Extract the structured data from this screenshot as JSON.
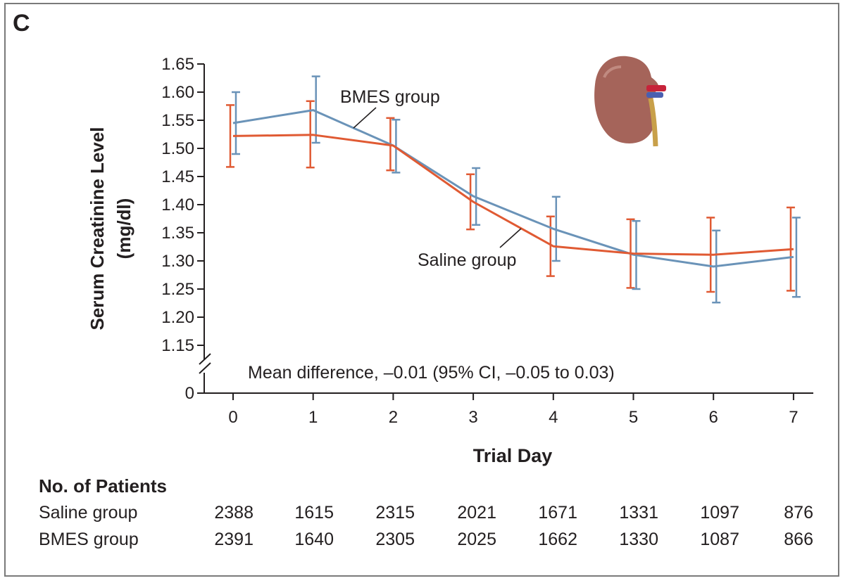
{
  "panel_label": "C",
  "colors": {
    "saline": "#e05a33",
    "bmes": "#6a93b8",
    "axis": "#231f20",
    "kidney": "#a5645a"
  },
  "icons": [
    "kidney-icon",
    "axis-break-icon"
  ],
  "chart_data": {
    "type": "line",
    "x": [
      0,
      1,
      2,
      3,
      4,
      5,
      6,
      7
    ],
    "xlabel": "Trial Day",
    "ylabel_line1": "Serum Creatinine Level",
    "ylabel_line2": "(mg/dl)",
    "ylim": [
      1.15,
      1.65
    ],
    "y_ticks": [
      "1.15",
      "1.20",
      "1.25",
      "1.30",
      "1.35",
      "1.40",
      "1.45",
      "1.50",
      "1.55",
      "1.60",
      "1.65"
    ],
    "y_break_tick": "0",
    "x_ticks": [
      "0",
      "1",
      "2",
      "3",
      "4",
      "5",
      "6",
      "7"
    ],
    "series": [
      {
        "name": "Saline group",
        "values": [
          1.522,
          1.524,
          1.505,
          1.405,
          1.326,
          1.313,
          1.311,
          1.321
        ],
        "lower": [
          1.467,
          1.466,
          1.461,
          1.356,
          1.273,
          1.252,
          1.245,
          1.247
        ],
        "upper": [
          1.577,
          1.584,
          1.554,
          1.454,
          1.379,
          1.374,
          1.377,
          1.395
        ]
      },
      {
        "name": "BMES group",
        "values": [
          1.545,
          1.568,
          1.505,
          1.415,
          1.357,
          1.311,
          1.29,
          1.307
        ],
        "lower": [
          1.49,
          1.51,
          1.457,
          1.364,
          1.3,
          1.25,
          1.226,
          1.236
        ],
        "upper": [
          1.6,
          1.628,
          1.551,
          1.465,
          1.414,
          1.371,
          1.354,
          1.377
        ]
      }
    ],
    "annotation": "Mean difference, –0.01 (95% CI, –0.05 to 0.03)",
    "grid": false
  },
  "patients_table": {
    "heading": "No. of Patients",
    "rows": [
      {
        "label": "Saline group",
        "values": [
          "2388",
          "1615",
          "2315",
          "2021",
          "1671",
          "1331",
          "1097",
          "876"
        ]
      },
      {
        "label": "BMES group",
        "values": [
          "2391",
          "1640",
          "2305",
          "2025",
          "1662",
          "1330",
          "1087",
          "866"
        ]
      }
    ]
  }
}
